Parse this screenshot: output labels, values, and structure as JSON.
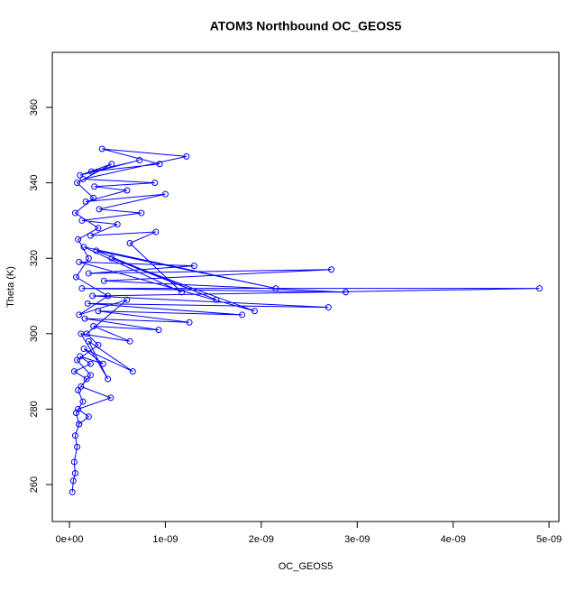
{
  "chart_data": {
    "type": "line",
    "title": "ATOM3 Northbound OC_GEOS5",
    "x_label": "OC_GEOS5",
    "y_label": "Theta (K)",
    "color": "#0000ff",
    "markers": true,
    "xlim": [
      -1.79e-10,
      5.103e-09
    ],
    "ylim": [
      250.2,
      374.6
    ],
    "xticks": [
      {
        "value": 0,
        "label": "0e+00"
      },
      {
        "value": 1e-09,
        "label": "1e-09"
      },
      {
        "value": 2e-09,
        "label": "2e-09"
      },
      {
        "value": 3e-09,
        "label": "3e-09"
      },
      {
        "value": 4e-09,
        "label": "4e-09"
      },
      {
        "value": 5e-09,
        "label": "5e-09"
      }
    ],
    "yticks": [
      260,
      280,
      300,
      320,
      340,
      360
    ],
    "x": [
      3e-11,
      4e-11,
      6e-11,
      5e-11,
      8e-11,
      6e-11,
      1e-10,
      7e-11,
      1.4e-10,
      9e-11,
      1.8e-10,
      5e-11,
      2.2e-10,
      1.1e-10,
      3.5e-10,
      1.5e-10,
      6.6e-10,
      2e-10,
      4e-10,
      1.2e-10,
      6.3e-10,
      2.5e-10,
      9.3e-10,
      1.6e-10,
      1.25e-09,
      3e-10,
      1.8e-09,
      1.9e-10,
      2.7e-09,
      2.4e-10,
      4.9e-09,
      1.3e-10,
      2.88e-09,
      3.6e-10,
      2.73e-09,
      2e-10,
      1.3e-09,
      1e-10,
      1.93e-09,
      4.4e-10,
      1.53e-09,
      2.8e-10,
      2.15e-09,
      1.5e-10,
      1.17e-09,
      6.3e-10,
      9e-10,
      2.2e-10,
      5e-10,
      1.3e-10,
      7.5e-10,
      3.1e-10,
      1e-09,
      1.7e-10,
      6e-10,
      2.6e-10,
      8.9e-10,
      1.4e-10,
      1.22e-09,
      3.4e-10,
      9.4e-10,
      2.3e-10,
      7.3e-10,
      1.1e-10,
      4.4e-10,
      8e-11,
      2.5e-10,
      6e-11,
      3e-10,
      9e-11,
      2e-10,
      7e-11,
      4e-10,
      1e-10,
      6e-10,
      1.8e-10,
      3e-10,
      8e-11,
      2.2e-10,
      1.2e-10,
      4.3e-10,
      9e-11,
      2e-10,
      1e-10
    ],
    "values": [
      258,
      261,
      263,
      266,
      270,
      273,
      276,
      279,
      282,
      285,
      288,
      290,
      292,
      294,
      292,
      296,
      290,
      298,
      288,
      300,
      298,
      302,
      301,
      304,
      303,
      306,
      305,
      308,
      307,
      310,
      312,
      312,
      311,
      314,
      317,
      316,
      318,
      319,
      306,
      320,
      309,
      322,
      312,
      323,
      311,
      324,
      327,
      326,
      329,
      330,
      332,
      333,
      337,
      335,
      338,
      339,
      340,
      341,
      347,
      349,
      345,
      343,
      346,
      342,
      345,
      340,
      336,
      332,
      328,
      325,
      320,
      315,
      310,
      305,
      309,
      300,
      297,
      293,
      289,
      286,
      283,
      280,
      278,
      276
    ]
  }
}
